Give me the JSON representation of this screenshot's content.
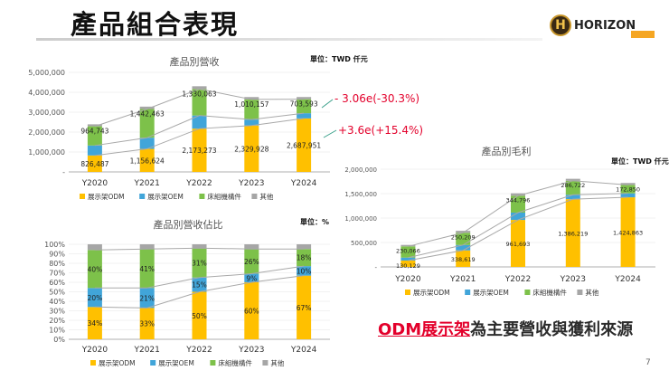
{
  "page": {
    "title": "產品組合表現",
    "logo_text": "HORIZON",
    "logo_mark": "H",
    "page_number": "7",
    "conclusion_highlight": "ODM展示架",
    "conclusion_rest": "為主要營收與獲利來源",
    "colors": {
      "odm": "#FFC000",
      "oem": "#41A5D9",
      "bed": "#7DC14A",
      "other": "#A6A6A6",
      "accent": "#E3002B",
      "line": "#A9A9A9"
    }
  },
  "chart_data": [
    {
      "id": "revenue",
      "type": "bar",
      "stacked": true,
      "title": "產品別營收",
      "unit_note": "單位：TWD 仟元",
      "categories": [
        "Y2020",
        "Y2021",
        "Y2022",
        "Y2023",
        "Y2024"
      ],
      "ylim": [
        0,
        5000000
      ],
      "yticks": [
        0,
        1000000,
        2000000,
        3000000,
        4000000,
        5000000
      ],
      "ytick_labels": [
        "-",
        "1,000,000",
        "2,000,000",
        "3,000,000",
        "4,000,000",
        "5,000,000"
      ],
      "series": [
        {
          "name": "展示架ODM",
          "values": [
            826487,
            1156624,
            2173273,
            2329928,
            2687951
          ],
          "labels": [
            "826,487",
            "1,156,624",
            "2,173,273",
            "2,329,928",
            "2,687,951"
          ]
        },
        {
          "name": "展示架OEM",
          "values": [
            500000,
            560000,
            660000,
            300000,
            260000
          ]
        },
        {
          "name": "床組機構件",
          "values": [
            964743,
            1442463,
            1330063,
            1010157,
            703593
          ],
          "labels": [
            "964,743",
            "1,442,463",
            "1,330,063",
            "1,010,157",
            "703,593"
          ]
        },
        {
          "name": "其他",
          "values": [
            100000,
            120000,
            140000,
            120000,
            110000
          ]
        }
      ],
      "legend": [
        "展示架ODM",
        "展示架OEM",
        "床組機構件",
        "其他"
      ],
      "callouts": [
        "- 3.06e(-30.3%)",
        "+3.6e(+15.4%)"
      ]
    },
    {
      "id": "share",
      "type": "bar",
      "stacked": true,
      "title": "產品別營收佔比",
      "unit_note": "單位：%",
      "categories": [
        "Y2020",
        "Y2021",
        "Y2022",
        "Y2023",
        "Y2024"
      ],
      "ylim": [
        0,
        100
      ],
      "yticks": [
        0,
        10,
        20,
        30,
        40,
        50,
        60,
        70,
        80,
        90,
        100
      ],
      "ytick_labels": [
        "0%",
        "10%",
        "20%",
        "30%",
        "40%",
        "50%",
        "60%",
        "70%",
        "80%",
        "90%",
        "100%"
      ],
      "series": [
        {
          "name": "展示架ODM",
          "values": [
            34,
            33,
            50,
            60,
            67
          ],
          "labels": [
            "34%",
            "33%",
            "50%",
            "60%",
            "67%"
          ]
        },
        {
          "name": "展示架OEM",
          "values": [
            20,
            21,
            15,
            9,
            10
          ],
          "labels": [
            "20%",
            "21%",
            "15%",
            "9%",
            "10%"
          ]
        },
        {
          "name": "床組機構件",
          "values": [
            40,
            41,
            31,
            26,
            18
          ],
          "labels": [
            "40%",
            "41%",
            "31%",
            "26%",
            "18%"
          ]
        },
        {
          "name": "其他",
          "values": [
            6,
            5,
            4,
            5,
            5
          ]
        }
      ],
      "legend": [
        "展示架ODM",
        "展示架OEM",
        "床組機構件",
        "其他"
      ]
    },
    {
      "id": "profit",
      "type": "bar",
      "stacked": true,
      "title": "產品別毛利",
      "unit_note": "單位：TWD 仟元",
      "categories": [
        "Y2020",
        "Y2021",
        "Y2022",
        "Y2023",
        "Y2024"
      ],
      "ylim": [
        0,
        2000000
      ],
      "yticks": [
        0,
        500000,
        1000000,
        1500000,
        2000000
      ],
      "ytick_labels": [
        "-",
        "500,000",
        "1,000,000",
        "1,500,000",
        "2,000,000"
      ],
      "series": [
        {
          "name": "展示架ODM",
          "values": [
            130129,
            338619,
            961693,
            1386219,
            1424863
          ],
          "labels": [
            "130,129",
            "338,619",
            "961,693",
            "1,386,219",
            "1,424,863"
          ]
        },
        {
          "name": "展示架OEM",
          "values": [
            60000,
            110000,
            150000,
            90000,
            80000
          ]
        },
        {
          "name": "床組機構件",
          "values": [
            230066,
            250209,
            344796,
            286722,
            172850
          ],
          "labels": [
            "230,066",
            "250,209",
            "344,796",
            "286,722",
            "172,850"
          ]
        },
        {
          "name": "其他",
          "values": [
            30000,
            40000,
            50000,
            40000,
            40000
          ]
        }
      ],
      "legend": [
        "展示架ODM",
        "展示架OEM",
        "床組機構件",
        "其他"
      ]
    }
  ]
}
